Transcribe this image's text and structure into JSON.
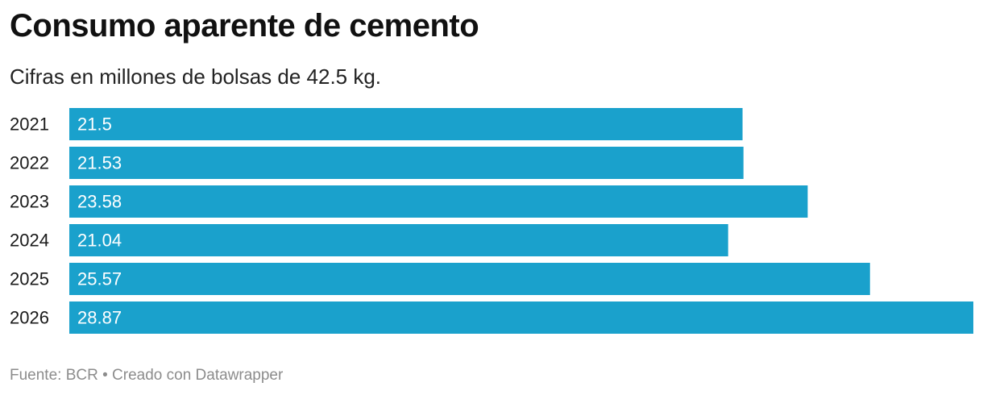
{
  "title": "Consumo aparente de cemento",
  "subtitle": "Cifras en millones de bolsas de 42.5 kg.",
  "footer": {
    "source": "Fuente: BCR",
    "separator": "•",
    "credit": "Creado con Datawrapper"
  },
  "colors": {
    "bar": "#1aa1cc",
    "bar_label": "#ffffff",
    "category_label": "#1a1a1a"
  },
  "chart_data": {
    "type": "bar",
    "orientation": "horizontal",
    "categories": [
      "2021",
      "2022",
      "2023",
      "2024",
      "2025",
      "2026"
    ],
    "values": [
      21.5,
      21.53,
      23.58,
      21.04,
      25.57,
      28.87
    ],
    "value_labels": [
      "21.5",
      "21.53",
      "23.58",
      "21.04",
      "25.57",
      "28.87"
    ],
    "title": "Consumo aparente de cemento",
    "subtitle": "Cifras en millones de bolsas de 42.5 kg.",
    "xlabel": "",
    "ylabel": "",
    "xlim": [
      0,
      28.87
    ],
    "grid": false,
    "legend": "none"
  }
}
